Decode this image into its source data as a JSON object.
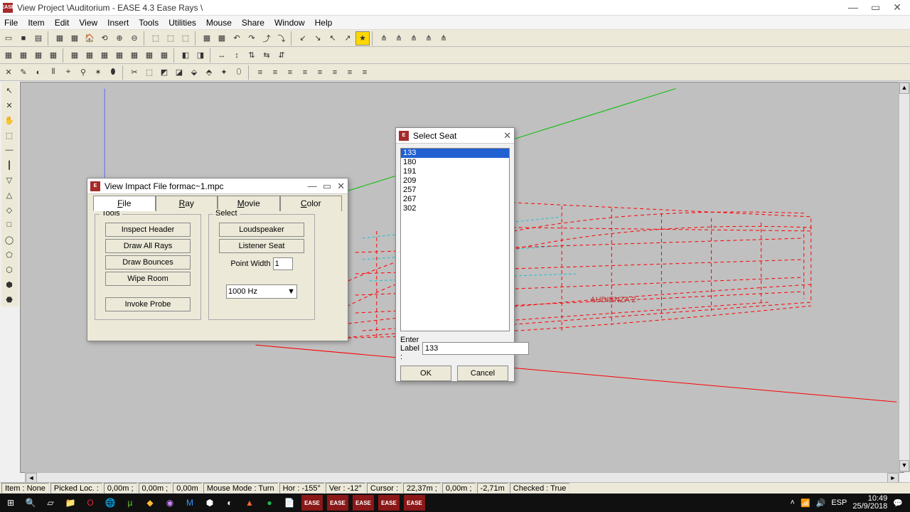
{
  "window": {
    "title": "View Project \\Auditorium - EASE 4.3 Ease Rays \\",
    "icon_text": "EASE"
  },
  "menu": [
    "File",
    "Item",
    "Edit",
    "View",
    "Insert",
    "Tools",
    "Utilities",
    "Mouse",
    "Share",
    "Window",
    "Help"
  ],
  "statusbar": {
    "item": "Item :",
    "item_val": "None",
    "picked": "Picked Loc. :",
    "coord1": "0,00m ;",
    "coord2": "0,00m ;",
    "coord3": "0,00m",
    "mouse_mode": "Mouse Mode :",
    "mm_val": "Turn",
    "hor": "Hor :",
    "hor_val": "-155°",
    "ver": "Ver :",
    "ver_val": "-12°",
    "cursor": "Cursor :",
    "cur1": "22,37m ;",
    "cur2": "0,00m ;",
    "cur3": "-2,71m",
    "checked": "Checked :",
    "checked_val": "True"
  },
  "impact_dialog": {
    "title": "View Impact File formac~1.mpc",
    "tabs": [
      "File",
      "Ray",
      "Movie",
      "Color"
    ],
    "active_tab": 0,
    "tools_legend": "Tools",
    "select_legend": "Select",
    "tools_buttons": [
      "Inspect Header",
      "Draw All Rays",
      "Draw Bounces",
      "Wipe Room",
      "Invoke Probe"
    ],
    "select_buttons": [
      "Loudspeaker",
      "Listener Seat"
    ],
    "point_width_label": "Point Width",
    "point_width_value": "1",
    "freq": "1000 Hz"
  },
  "seat_dialog": {
    "title": "Select Seat",
    "items": [
      "133",
      "180",
      "191",
      "209",
      "257",
      "267",
      "302"
    ],
    "selected_index": 0,
    "enter_label": "Enter Label :",
    "enter_value": "133",
    "ok": "OK",
    "cancel": "Cancel"
  },
  "taskbar": {
    "lang": "ESP",
    "time": "10:49",
    "date": "25/9/2018"
  },
  "canvas": {
    "bg": "#c0c0c0",
    "wire_color": "#ff0000",
    "green_line": "#00c000",
    "blue_line": "#6060ff",
    "cyan_line": "#20c0d0",
    "label": "AUDIENZA 2"
  }
}
